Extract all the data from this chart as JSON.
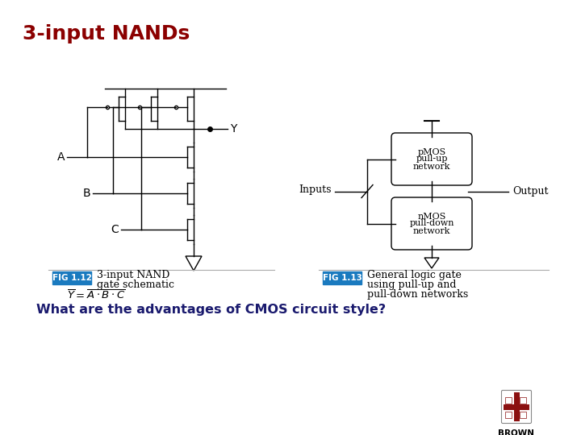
{
  "title": "3-input NANDs",
  "title_color": "#8B0000",
  "title_fontsize": 18,
  "question": "What are the advantages of CMOS circuit style?",
  "question_color": "#1a1a6e",
  "question_fontsize": 11.5,
  "fig12_label": "FIG 1.12",
  "fig12_desc_line1": "3-input NAND",
  "fig12_desc_line2": "gate schematic",
  "fig13_label": "FIG 1.13",
  "fig13_desc_line1": "General logic gate",
  "fig13_desc_line2": "using pull-up and",
  "fig13_desc_line3": "pull-down networks",
  "fig_label_bg": "#1a7abf",
  "fig_label_color": "#ffffff",
  "background_color": "#ffffff",
  "brown_text": "BROWN",
  "pmos_line1": "pMOS",
  "pmos_line2": "pull-up",
  "pmos_line3": "network",
  "nmos_line1": "nMOS",
  "nmos_line2": "pull-down",
  "nmos_line3": "network"
}
